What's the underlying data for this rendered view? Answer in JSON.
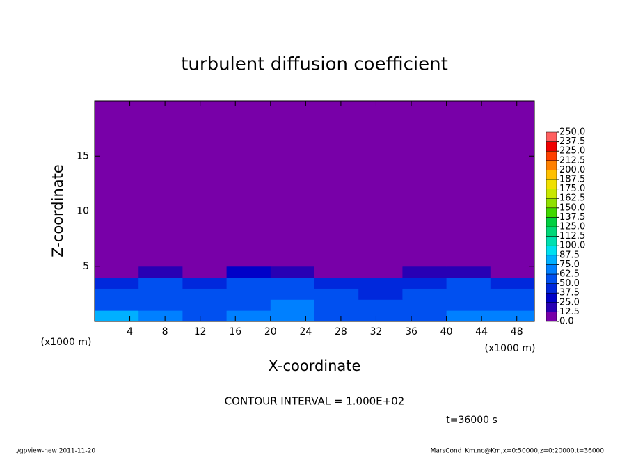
{
  "chart_data": {
    "type": "contour",
    "title": "turbulent diffusion coefficient",
    "x_label": "X-coordinate",
    "y_label": "Z-coordinate",
    "x_unit": "(x1000 m)",
    "y_unit": "(x1000 m)",
    "xlim": [
      0,
      50
    ],
    "xticks": [
      4,
      8,
      12,
      16,
      20,
      24,
      28,
      32,
      36,
      40,
      44,
      48
    ],
    "ylim": [
      0,
      20
    ],
    "yticks": [
      5,
      10,
      15
    ],
    "xbins": [
      0,
      5,
      10,
      15,
      20,
      25,
      30,
      35,
      40,
      45,
      50
    ],
    "zbins": [
      0,
      1,
      2,
      3,
      4,
      5,
      20
    ],
    "values": [
      [
        75,
        70,
        60,
        65,
        70,
        60,
        55,
        60,
        70,
        65
      ],
      [
        55,
        60,
        55,
        60,
        65,
        55,
        50,
        55,
        60,
        55
      ],
      [
        50,
        55,
        50,
        60,
        55,
        50,
        45,
        50,
        55,
        50
      ],
      [
        45,
        50,
        45,
        55,
        50,
        45,
        40,
        45,
        50,
        45
      ],
      [
        0,
        12.5,
        0,
        25,
        12.5,
        0,
        0,
        12.5,
        12.5,
        0
      ],
      [
        0,
        0,
        0,
        0,
        0,
        0,
        0,
        0,
        0,
        0
      ]
    ],
    "levels": [
      {
        "value": 0,
        "label": "0.0"
      },
      12.5,
      {
        "value": 25,
        "label": "25.0"
      },
      37.5,
      {
        "value": 50,
        "label": "50.0"
      },
      62.5,
      {
        "value": 75,
        "label": "75.0"
      },
      87.5,
      {
        "value": 100,
        "label": "100.0"
      },
      112.5,
      {
        "value": 125,
        "label": "125.0"
      },
      137.5,
      {
        "value": 150,
        "label": "150.0"
      },
      162.5,
      {
        "value": 175,
        "label": "175.0"
      },
      187.5,
      {
        "value": 200,
        "label": "200.0"
      },
      212.5,
      {
        "value": 225,
        "label": "225.0"
      },
      237.5,
      {
        "value": 250,
        "label": "250.0"
      }
    ],
    "colors": [
      "#7800a8",
      "#2800b4",
      "#0000c8",
      "#0028dc",
      "#0050f0",
      "#0080ff",
      "#00b0ff",
      "#00e0f0",
      "#00e0b0",
      "#00d878",
      "#00d040",
      "#40d800",
      "#90e000",
      "#c8e800",
      "#f0e000",
      "#ffc000",
      "#ff8000",
      "#ff4000",
      "#f00000",
      "#ff6060"
    ],
    "contour_interval": "CONTOUR INTERVAL = 1.000E+02",
    "time": "t=36000 s",
    "footer_left": "./gpview-new  2011-11-20",
    "footer_right": "MarsCond_Km.nc@Km,x=0:50000,z=0:20000,t=36000"
  }
}
